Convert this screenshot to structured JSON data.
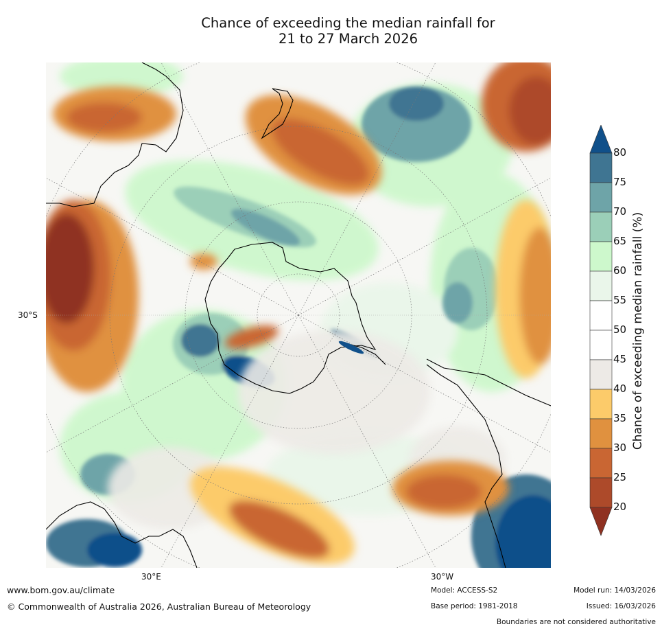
{
  "title": {
    "line1": "Chance of exceeding the median rainfall for",
    "line2": "21 to 27 March 2026"
  },
  "map": {
    "lat_label": "30°S",
    "lon_labels": {
      "east": "30°E",
      "west": "30°W"
    },
    "coastline_color": "#000000",
    "graticule_color": "#777777"
  },
  "colorbar": {
    "label": "Chance of exceeding median rainfall (%)",
    "ticks": [
      "80",
      "75",
      "70",
      "65",
      "60",
      "55",
      "50",
      "45",
      "40",
      "35",
      "30",
      "25",
      "20"
    ],
    "bins": [
      {
        "range": ">80",
        "color": "#10508a"
      },
      {
        "range": "75-80",
        "color": "#3f7592"
      },
      {
        "range": "70-75",
        "color": "#6ea4a8"
      },
      {
        "range": "65-70",
        "color": "#9bcfb8"
      },
      {
        "range": "60-65",
        "color": "#cdf8cc"
      },
      {
        "range": "55-60",
        "color": "#eaf6ea"
      },
      {
        "range": "50-55",
        "color": "#ffffff"
      },
      {
        "range": "45-50",
        "color": "#ffffff"
      },
      {
        "range": "40-45",
        "color": "#edeae6"
      },
      {
        "range": "35-40",
        "color": "#fccb6a"
      },
      {
        "range": "30-35",
        "color": "#e0913f"
      },
      {
        "range": "25-30",
        "color": "#c96633"
      },
      {
        "range": "20-25",
        "color": "#ad4a2a"
      },
      {
        "range": "<20",
        "color": "#8f3121"
      }
    ]
  },
  "footer": {
    "url": "www.bom.gov.au/climate",
    "copyright": "© Commonwealth of Australia 2026, Australian Bureau of Meteorology",
    "model": "Model: ACCESS-S2",
    "base_period": "Base period: 1981-2018",
    "model_run": "Model run: 14/03/2026",
    "issued": "Issued: 16/03/2026",
    "disclaimer": "Boundaries are not considered authoritative"
  }
}
